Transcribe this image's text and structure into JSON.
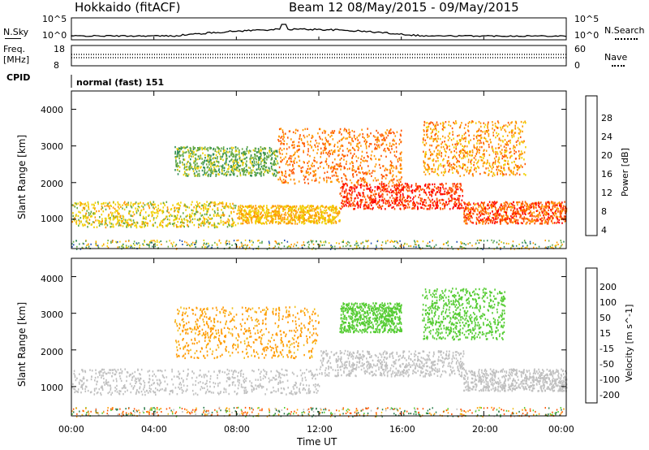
{
  "header": {
    "title_left": "Hokkaido (fitACF)",
    "title_right": "Beam 12 08/May/2015 - 09/May/2015"
  },
  "noise_panel": {
    "left_label": "N.Sky",
    "right_label": "N.Search",
    "left_ticks": [
      "10^5",
      "10^0"
    ],
    "right_ticks": [
      "10^5",
      "10^0"
    ]
  },
  "freq_panel": {
    "left_label_1": "Freq.",
    "left_label_2": "[MHz]",
    "left_ticks": [
      "18",
      "8"
    ],
    "right_label": "Nave",
    "right_ticks": [
      "60",
      "0"
    ]
  },
  "cpid_panel": {
    "label": "CPID",
    "value": "normal (fast) 151"
  },
  "colors": {
    "scatter_palette": [
      "#0000ff",
      "#1f4fb4",
      "#2e8b57",
      "#6ab04c",
      "#f0d000",
      "#ff9900",
      "#ff6600",
      "#ff0000"
    ],
    "ground_grey": "#c0c0c0",
    "velocity_green": "#33cc33",
    "velocity_orange": "#f0b020"
  },
  "chart_data": [
    {
      "type": "heatmap",
      "panel": "power",
      "xlabel": "",
      "ylabel": "Slant Range [km]",
      "yticks": [
        "1000",
        "2000",
        "3000",
        "4000"
      ],
      "ylim": [
        200,
        4500
      ],
      "colorbar": {
        "label": "Power [dB]",
        "ticks": [
          "4",
          "8",
          "12",
          "16",
          "20",
          "24",
          "28"
        ],
        "range": [
          0,
          32
        ],
        "colors": [
          "#0000ff",
          "#1f4fb4",
          "#2e8b57",
          "#66aa44",
          "#f0d000",
          "#ff9900",
          "#ff5500",
          "#ff0000"
        ]
      },
      "bands": [
        {
          "t": [
            0,
            8
          ],
          "r": [
            800,
            1500
          ],
          "dB": 18
        },
        {
          "t": [
            8,
            13
          ],
          "r": [
            900,
            1400
          ],
          "dB": 20
        },
        {
          "t": [
            13,
            19
          ],
          "r": [
            1300,
            2000
          ],
          "dB": 28
        },
        {
          "t": [
            19,
            24
          ],
          "r": [
            900,
            1500
          ],
          "dB": 26
        },
        {
          "t": [
            5,
            10
          ],
          "r": [
            2200,
            3000
          ],
          "dB": 14
        },
        {
          "t": [
            10,
            16
          ],
          "r": [
            2000,
            3500
          ],
          "dB": 24
        },
        {
          "t": [
            17,
            22
          ],
          "r": [
            2200,
            3700
          ],
          "dB": 22
        }
      ]
    },
    {
      "type": "heatmap",
      "panel": "velocity",
      "xlabel": "Time UT",
      "ylabel": "Slant Range [km]",
      "xticks": [
        "00:00",
        "04:00",
        "08:00",
        "12:00",
        "16:00",
        "20:00",
        "00:00"
      ],
      "yticks": [
        "1000",
        "2000",
        "3000",
        "4000"
      ],
      "ylim": [
        200,
        4500
      ],
      "colorbar": {
        "label": "Velocity [m s^-1]",
        "ticks": [
          "200",
          "100",
          "50",
          "15",
          "-15",
          "-50",
          "-100",
          "-200"
        ],
        "colors": [
          "#1e3fbf",
          "#2f7f4f",
          "#55cc33",
          "#c0c0c0",
          "#f0c020",
          "#ff9900",
          "#ff5500",
          "#ff0000"
        ]
      },
      "bands": [
        {
          "t": [
            0,
            12
          ],
          "r": [
            800,
            1500
          ],
          "v": 0
        },
        {
          "t": [
            12,
            19
          ],
          "r": [
            1300,
            2000
          ],
          "v": 0
        },
        {
          "t": [
            19,
            24
          ],
          "r": [
            900,
            1500
          ],
          "v": 0
        },
        {
          "t": [
            5,
            12
          ],
          "r": [
            1800,
            3200
          ],
          "v": -40
        },
        {
          "t": [
            13,
            16
          ],
          "r": [
            2500,
            3300
          ],
          "v": 60
        },
        {
          "t": [
            17,
            21
          ],
          "r": [
            2300,
            3700
          ],
          "v": 60
        }
      ]
    }
  ]
}
